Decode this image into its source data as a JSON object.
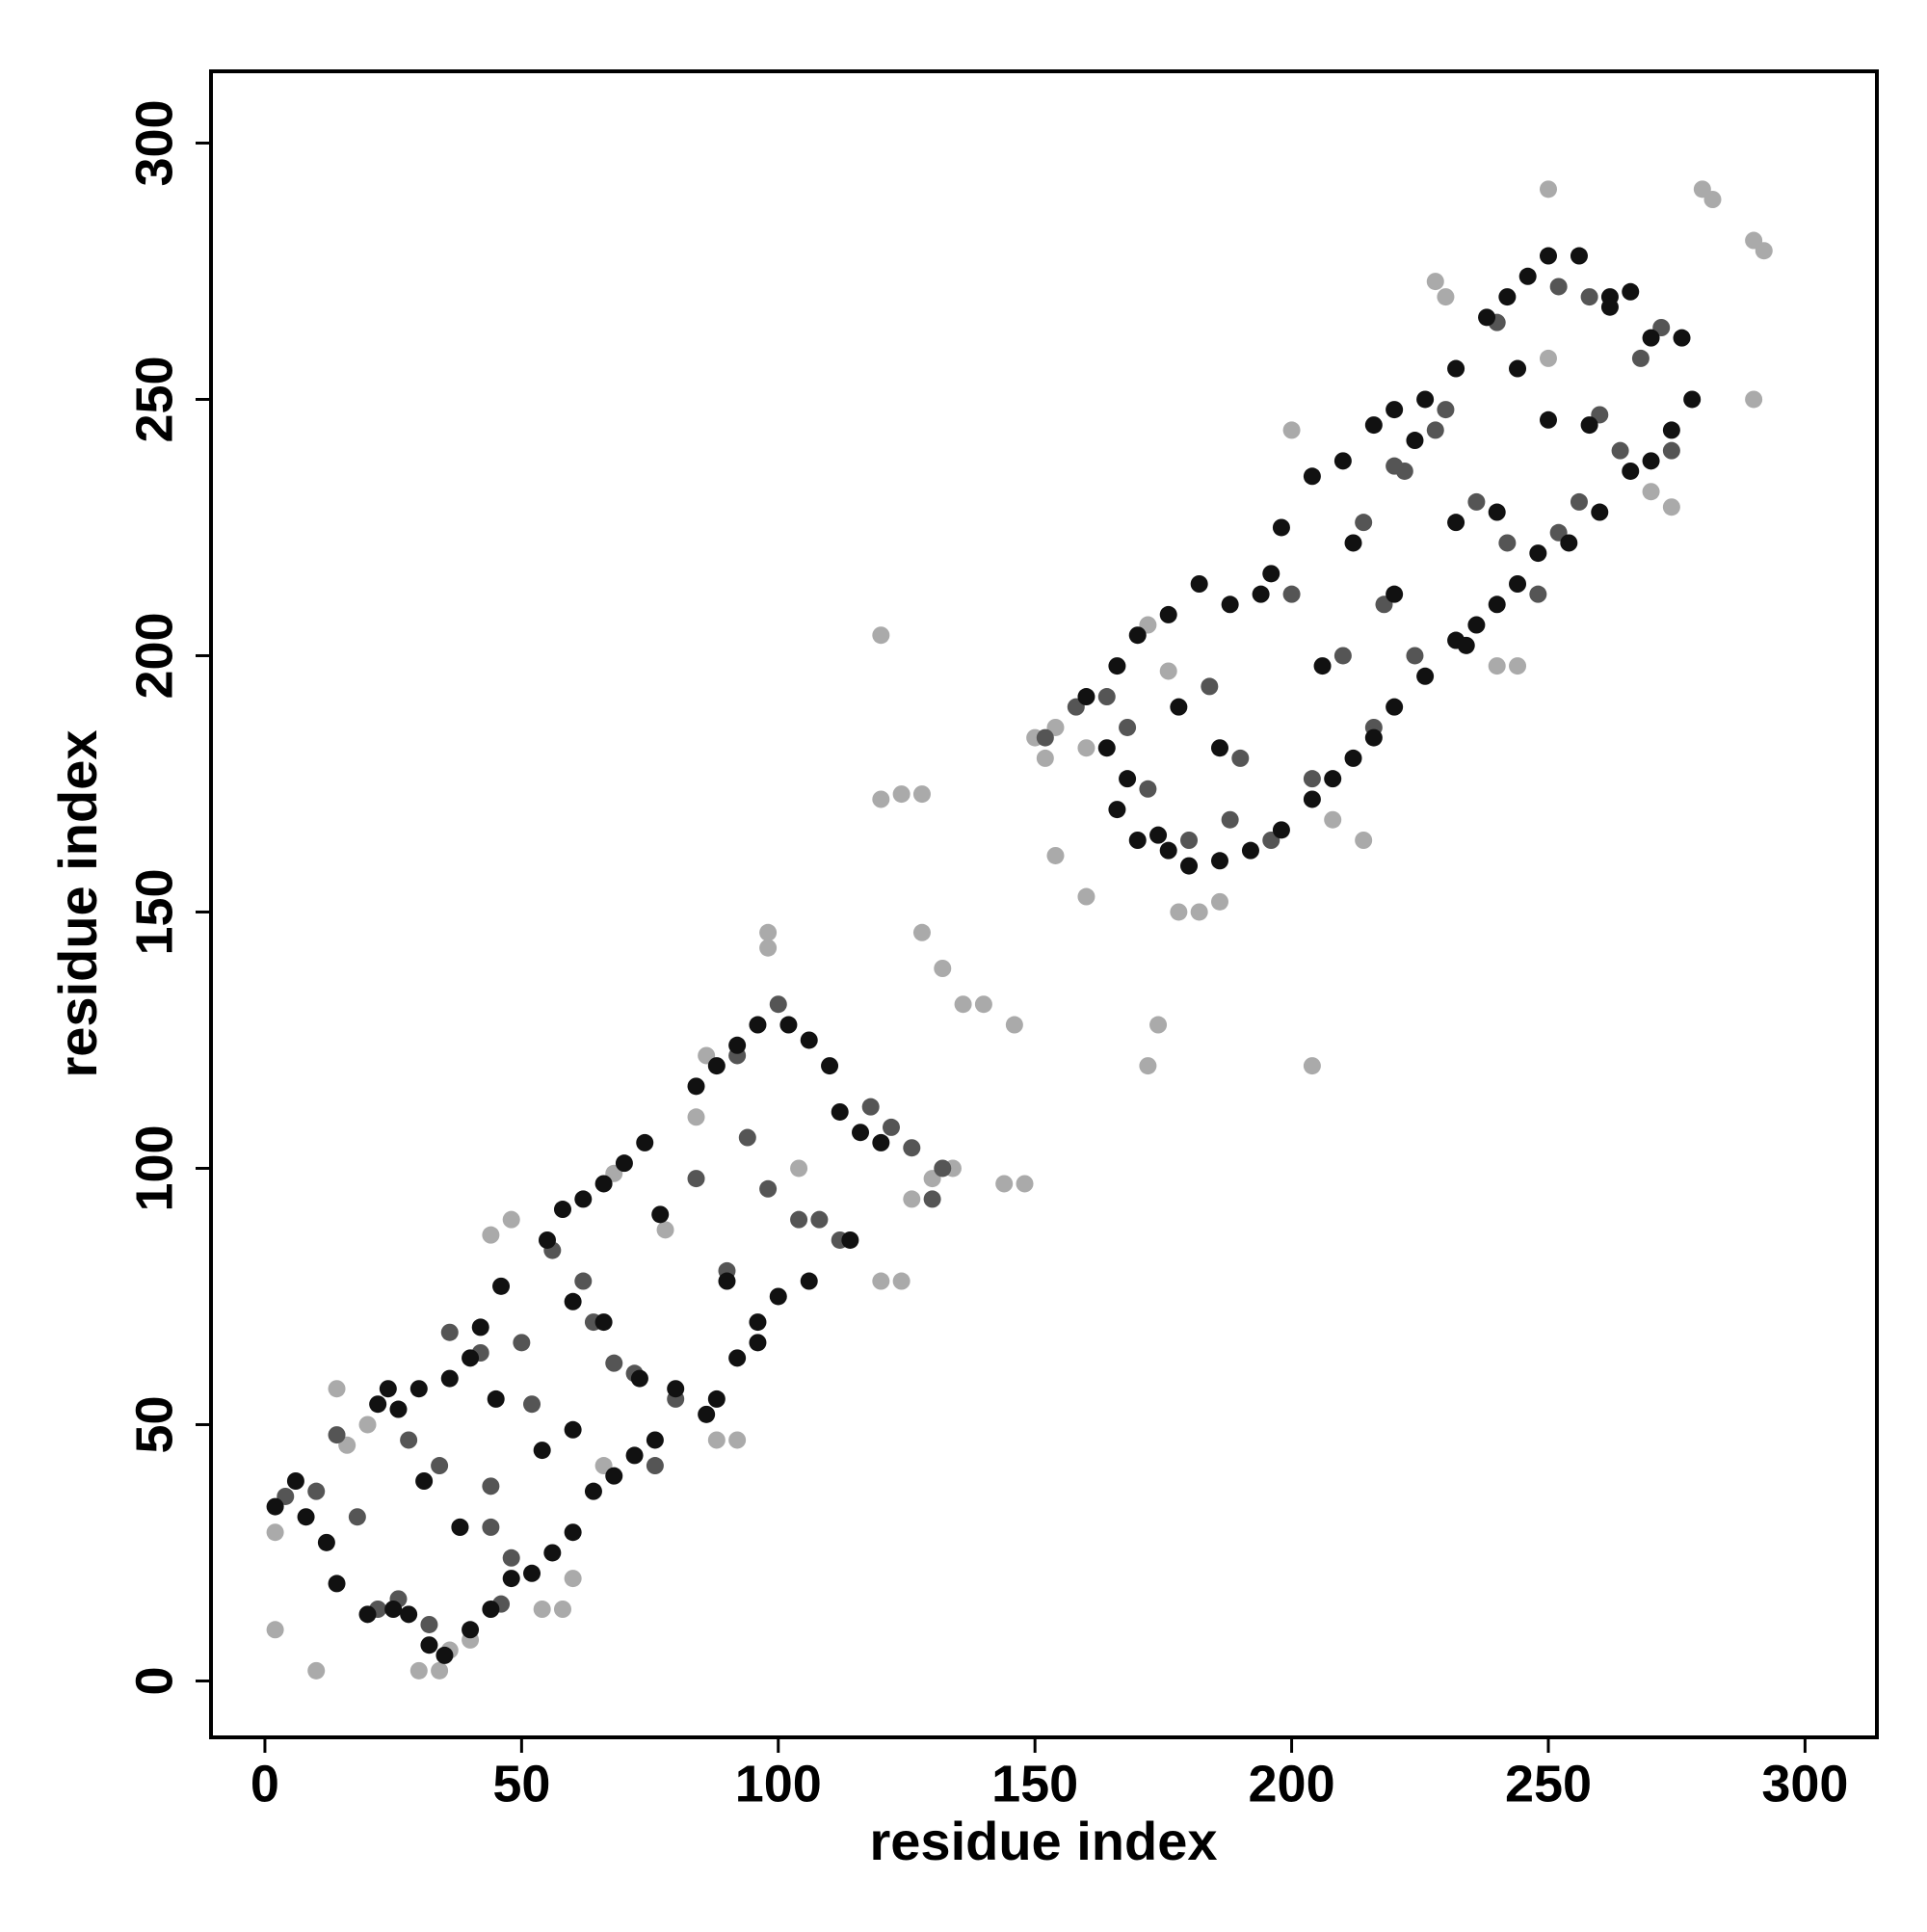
{
  "chart_data": {
    "type": "scatter",
    "xlabel": "residue index",
    "ylabel": "residue index",
    "xlim": [
      -10.5,
      314
    ],
    "ylim": [
      -11,
      314
    ],
    "xticks": [
      0,
      50,
      100,
      150,
      200,
      250,
      300
    ],
    "yticks": [
      0,
      50,
      100,
      150,
      200,
      250,
      300
    ],
    "series": [
      {
        "color": "#aaaaaa",
        "x": [
          120,
          120,
          124,
          128,
          128,
          132,
          136,
          140,
          146,
          144,
          148,
          98,
          98,
          174,
          172,
          204,
          154,
          160,
          280,
          282,
          290,
          292,
          290,
          250,
          250,
          2,
          10,
          30,
          34,
          48,
          44,
          54,
          88,
          92,
          86,
          120,
          124,
          152,
          150,
          154,
          178,
          182,
          186,
          200,
          270,
          274,
          230,
          228,
          240,
          244,
          160,
          208,
          214,
          172,
          176,
          40,
          36,
          16,
          20,
          68,
          84,
          78,
          104,
          126,
          130,
          134,
          66,
          60,
          58,
          14,
          2
        ],
        "values": [
          204,
          172,
          173,
          173,
          146,
          139,
          132,
          132,
          128,
          97,
          97,
          146,
          143,
          128,
          120,
          120,
          161,
          153,
          291,
          289,
          281,
          279,
          250,
          291,
          258,
          10,
          2,
          2,
          2,
          90,
          87,
          14,
          47,
          47,
          122,
          78,
          78,
          180,
          184,
          186,
          150,
          150,
          152,
          244,
          232,
          229,
          270,
          273,
          198,
          198,
          182,
          168,
          164,
          206,
          197,
          8,
          6,
          46,
          50,
          99,
          110,
          88,
          100,
          94,
          98,
          100,
          42,
          20,
          14,
          57,
          29
        ]
      },
      {
        "color": "#555555",
        "x": [
          4,
          10,
          14,
          18,
          22,
          28,
          34,
          38,
          44,
          48,
          52,
          56,
          62,
          64,
          68,
          72,
          76,
          80,
          84,
          90,
          94,
          98,
          104,
          108,
          112,
          118,
          122,
          126,
          130,
          132,
          100,
          92,
          36,
          42,
          50,
          26,
          32,
          46,
          44,
          164,
          168,
          172,
          180,
          190,
          196,
          200,
          204,
          210,
          214,
          218,
          222,
          228,
          236,
          242,
          248,
          252,
          256,
          260,
          264,
          268,
          272,
          274,
          258,
          252,
          240,
          230,
          220,
          216,
          224,
          158,
          152,
          184,
          188
        ],
        "values": [
          36,
          37,
          48,
          32,
          14,
          47,
          42,
          30,
          30,
          24,
          54,
          84,
          78,
          70,
          62,
          60,
          42,
          55,
          98,
          80,
          106,
          96,
          90,
          90,
          86,
          112,
          108,
          104,
          94,
          100,
          132,
          122,
          68,
          64,
          66,
          16,
          11,
          15,
          38,
          192,
          186,
          174,
          164,
          180,
          164,
          212,
          176,
          200,
          226,
          210,
          236,
          244,
          230,
          222,
          212,
          224,
          230,
          247,
          240,
          258,
          264,
          240,
          270,
          272,
          265,
          248,
          237,
          186,
          200,
          190,
          184,
          194,
          168
        ]
      },
      {
        "color": "#111111",
        "x": [
          8,
          12,
          14,
          20,
          25,
          28,
          32,
          35,
          40,
          44,
          48,
          52,
          56,
          60,
          64,
          68,
          72,
          76,
          73,
          66,
          60,
          55,
          58,
          62,
          66,
          70,
          74,
          77,
          84,
          88,
          92,
          96,
          102,
          106,
          110,
          112,
          116,
          120,
          114,
          106,
          100,
          96,
          92,
          88,
          86,
          90,
          96,
          80,
          42,
          46,
          40,
          36,
          30,
          26,
          24,
          22,
          31,
          38,
          45,
          60,
          54,
          2,
          6,
          170,
          176,
          180,
          186,
          192,
          198,
          204,
          208,
          212,
          216,
          220,
          226,
          232,
          236,
          240,
          244,
          248,
          254,
          260,
          266,
          270,
          274,
          278,
          276,
          270,
          266,
          262,
          256,
          250,
          246,
          242,
          238,
          232,
          226,
          220,
          216,
          210,
          204,
          198,
          194,
          188,
          182,
          176,
          170,
          166,
          160,
          164,
          168,
          174,
          178,
          186,
          196,
          206,
          212,
          220,
          224,
          232,
          240,
          244,
          250,
          258,
          262,
          234,
          166
        ],
        "values": [
          32,
          27,
          19,
          13,
          14,
          13,
          7,
          5,
          10,
          14,
          20,
          21,
          25,
          29,
          37,
          40,
          44,
          47,
          59,
          70,
          74,
          86,
          92,
          94,
          97,
          101,
          105,
          91,
          116,
          120,
          124,
          128,
          128,
          125,
          120,
          111,
          107,
          105,
          86,
          78,
          75,
          70,
          63,
          55,
          52,
          78,
          66,
          57,
          69,
          77,
          63,
          59,
          57,
          53,
          57,
          54,
          39,
          30,
          55,
          49,
          45,
          34,
          39,
          164,
          162,
          159,
          160,
          162,
          166,
          172,
          176,
          180,
          184,
          190,
          196,
          203,
          206,
          210,
          214,
          220,
          222,
          228,
          236,
          238,
          244,
          250,
          262,
          262,
          271,
          270,
          278,
          278,
          274,
          270,
          266,
          256,
          250,
          248,
          245,
          238,
          235,
          225,
          212,
          210,
          214,
          208,
          204,
          198,
          192,
          182,
          176,
          165,
          190,
          182,
          216,
          198,
          222,
          212,
          242,
          226,
          228,
          256,
          246,
          245,
          268,
          202,
          170
        ]
      }
    ]
  }
}
